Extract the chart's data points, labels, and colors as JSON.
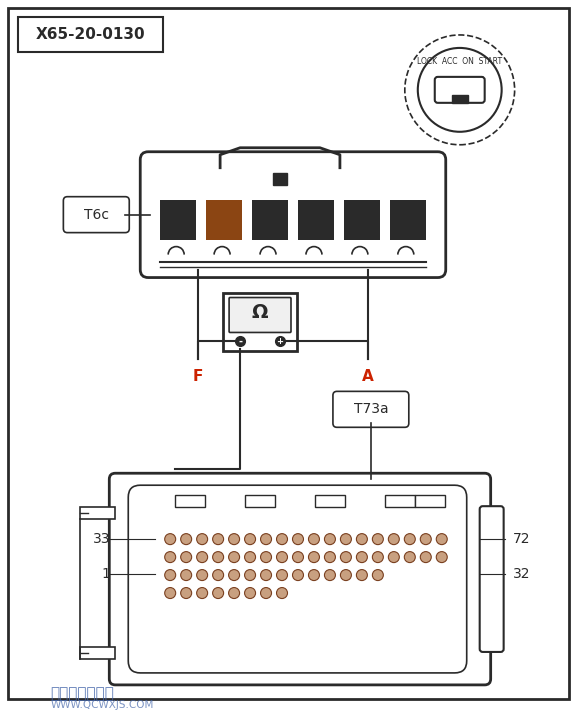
{
  "title_label": "X65-20-0130",
  "connector1_label": "T6c",
  "connector2_label": "T73a",
  "label_F": "F",
  "label_A": "A",
  "label_33": "33",
  "label_1": "1",
  "label_72": "72",
  "label_32": "32",
  "ignition_text": "LOCK ACC ON START",
  "watermark": "汽车维修技术网",
  "watermark2": "WWW.QCWXJS.COM",
  "bg_color": "#ffffff",
  "border_color": "#1a1a1a",
  "line_color": "#2a2a2a",
  "dark_fill": "#2a2a2a",
  "pin_color": "#8B4513",
  "red_label_color": "#cc2200",
  "gray_label_color": "#555555",
  "blue_watermark": "#4466aa"
}
